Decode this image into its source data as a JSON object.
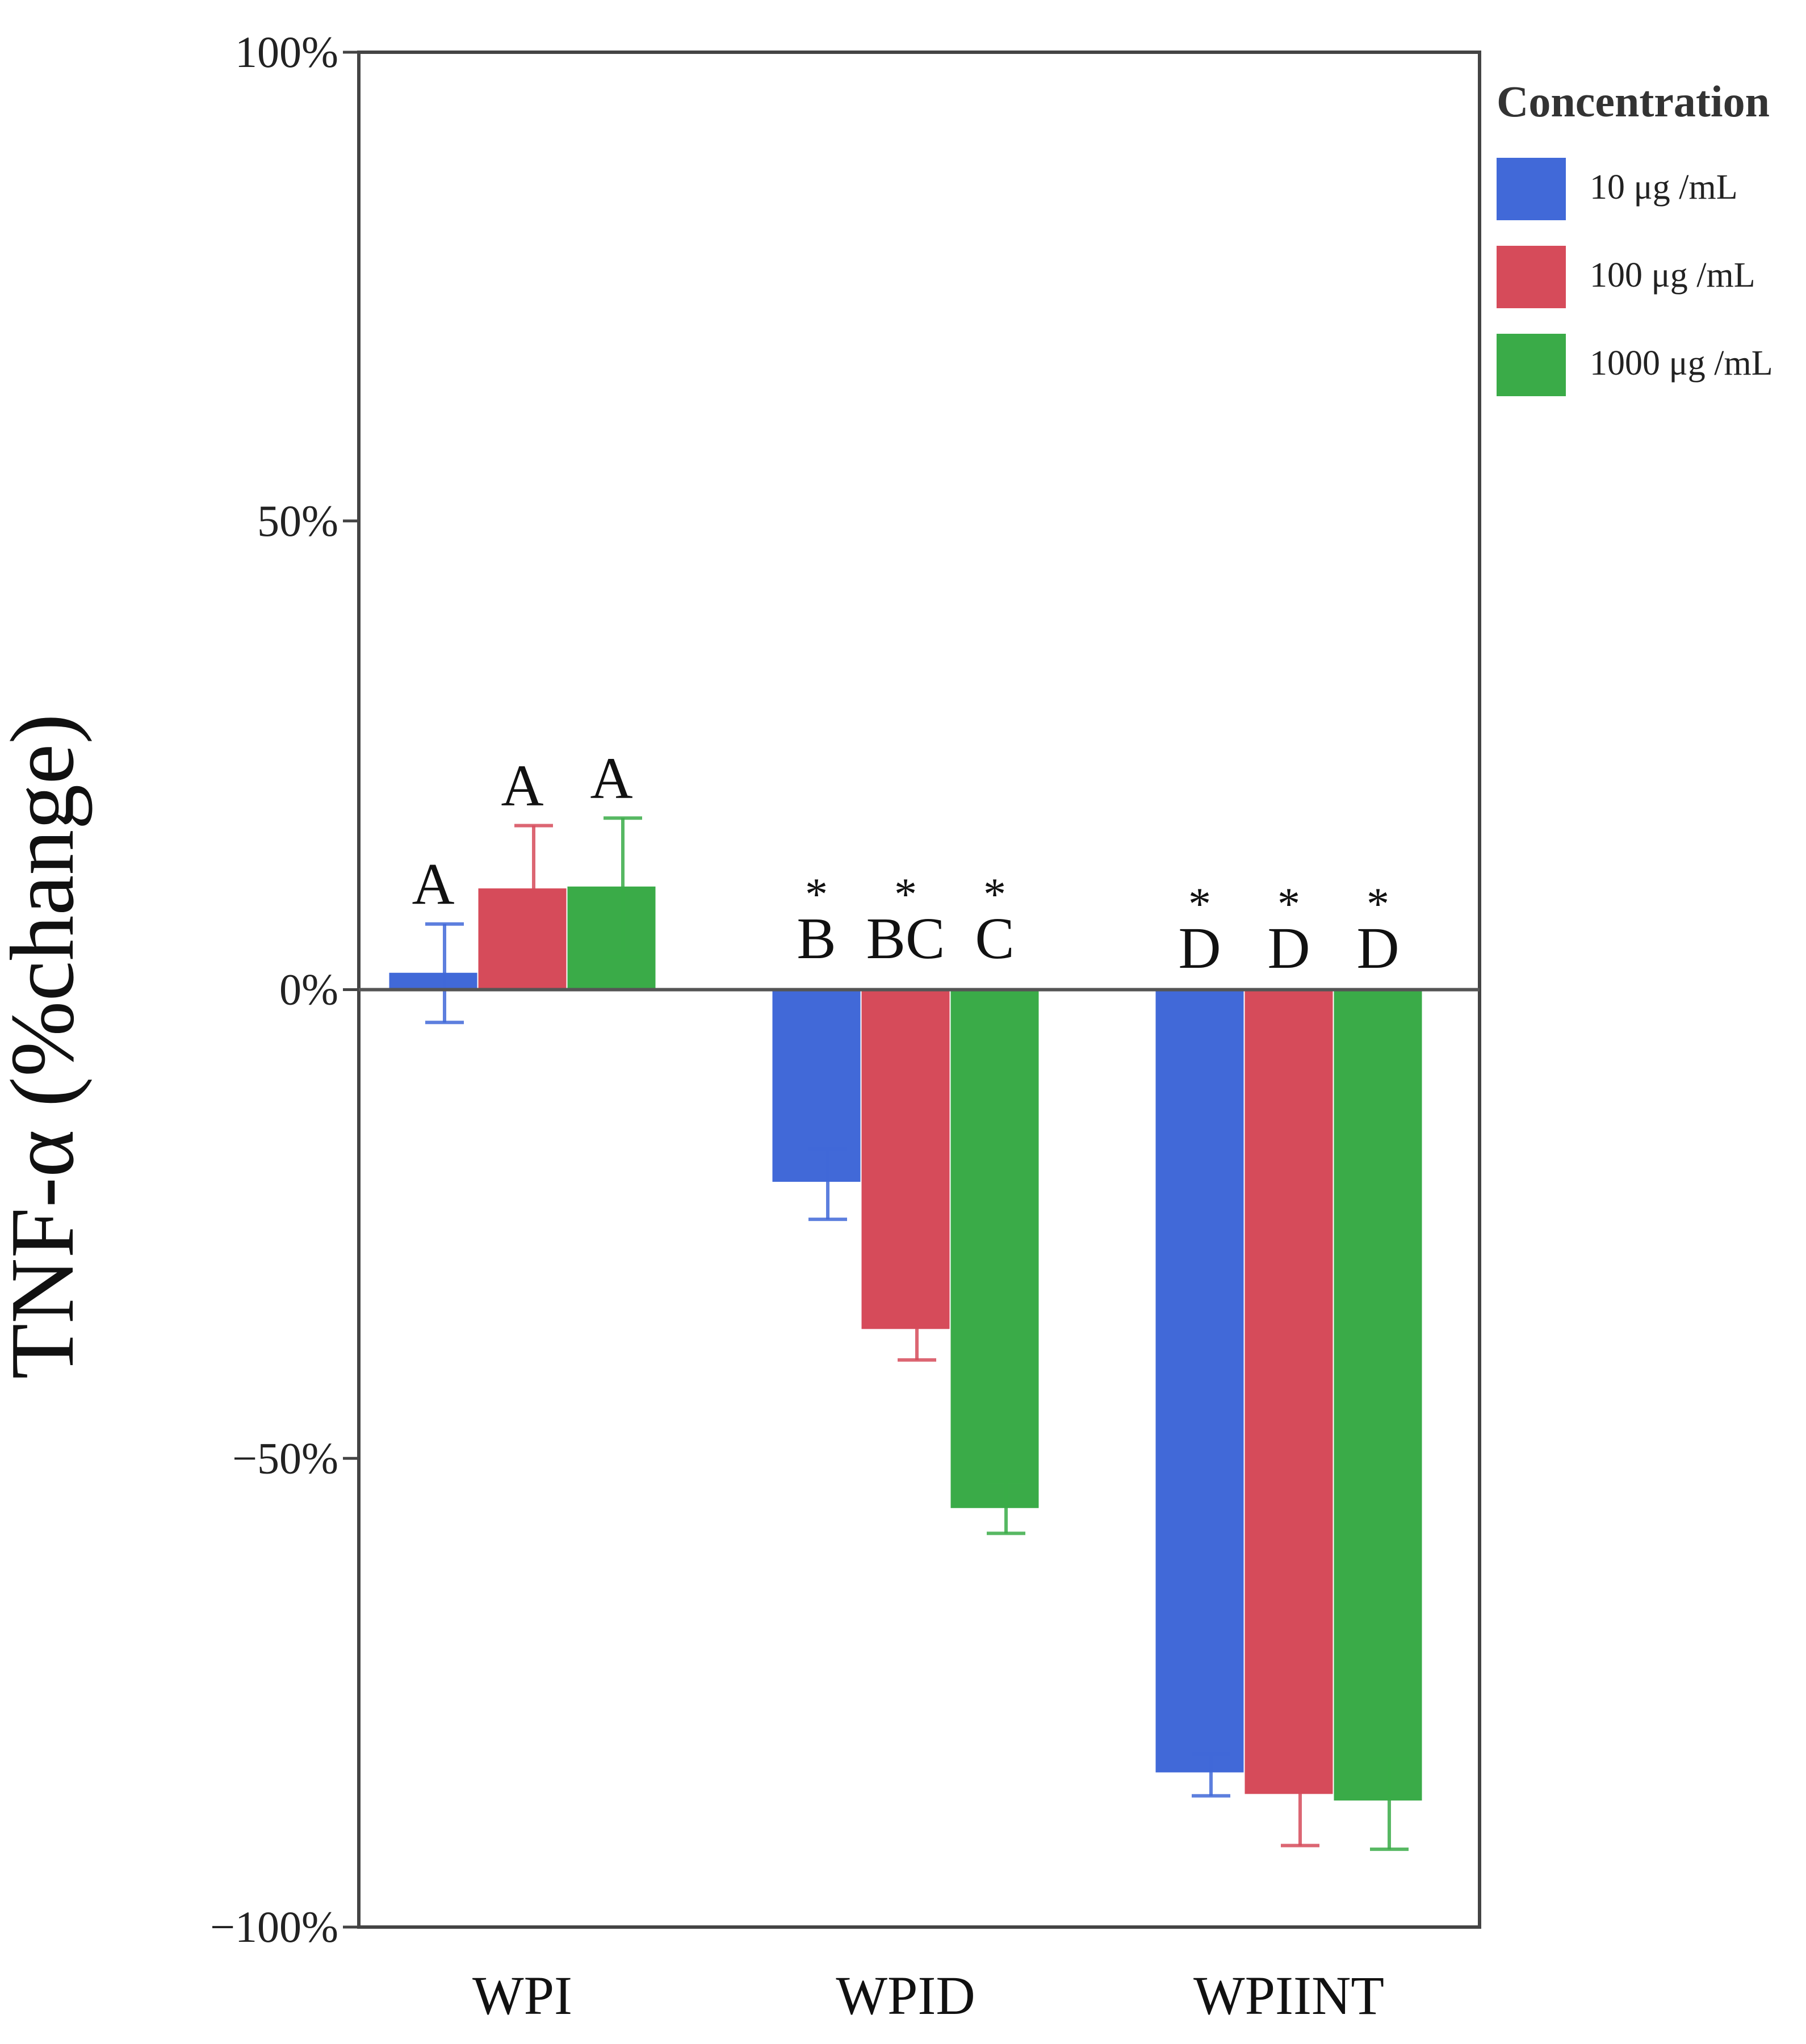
{
  "chart_data": {
    "type": "bar",
    "title": "",
    "xlabel": "",
    "ylabel": "TNF-α (%change)",
    "ylim": [
      -100,
      100
    ],
    "yticks": [
      100,
      50,
      0,
      -50,
      -100
    ],
    "ytick_labels": [
      "100%",
      "50%",
      "0%",
      "−50%",
      "−100%"
    ],
    "categories": [
      "WPI",
      "WPID",
      "WPIINT"
    ],
    "legend": {
      "title": "Concentration",
      "placement": "top-right",
      "entries": [
        "10 μg /mL",
        "100 μg /mL",
        "1000 μg /mL"
      ]
    },
    "colors": [
      "#4169d8",
      "#d64b5a",
      "#3aab48"
    ],
    "series": [
      {
        "name": "10 μg /mL",
        "values": [
          1.8,
          -20.5,
          -83.5
        ],
        "err_low": [
          -3.5,
          -24.5,
          -86
        ],
        "err_high": [
          7,
          -17.0,
          -81.5
        ],
        "letters": [
          "A",
          "B",
          "D"
        ],
        "stars": [
          "",
          "*",
          "*"
        ]
      },
      {
        "name": "100 μg /mL",
        "values": [
          10.8,
          -36.2,
          -85.8
        ],
        "err_low": [
          3.8,
          -39.5,
          -91.3
        ],
        "err_high": [
          17.5,
          -33.0,
          -80.7
        ],
        "letters": [
          "A",
          "BC",
          "D"
        ],
        "stars": [
          "",
          "*",
          "*"
        ]
      },
      {
        "name": "1000 μg /mL",
        "values": [
          11,
          -55.3,
          -86.5
        ],
        "err_low": [
          3.5,
          -58.0,
          -91.7
        ],
        "err_high": [
          18.3,
          -52.5,
          -82.0
        ],
        "letters": [
          "A",
          "C",
          "D"
        ],
        "stars": [
          "",
          "*",
          "*"
        ]
      }
    ]
  }
}
